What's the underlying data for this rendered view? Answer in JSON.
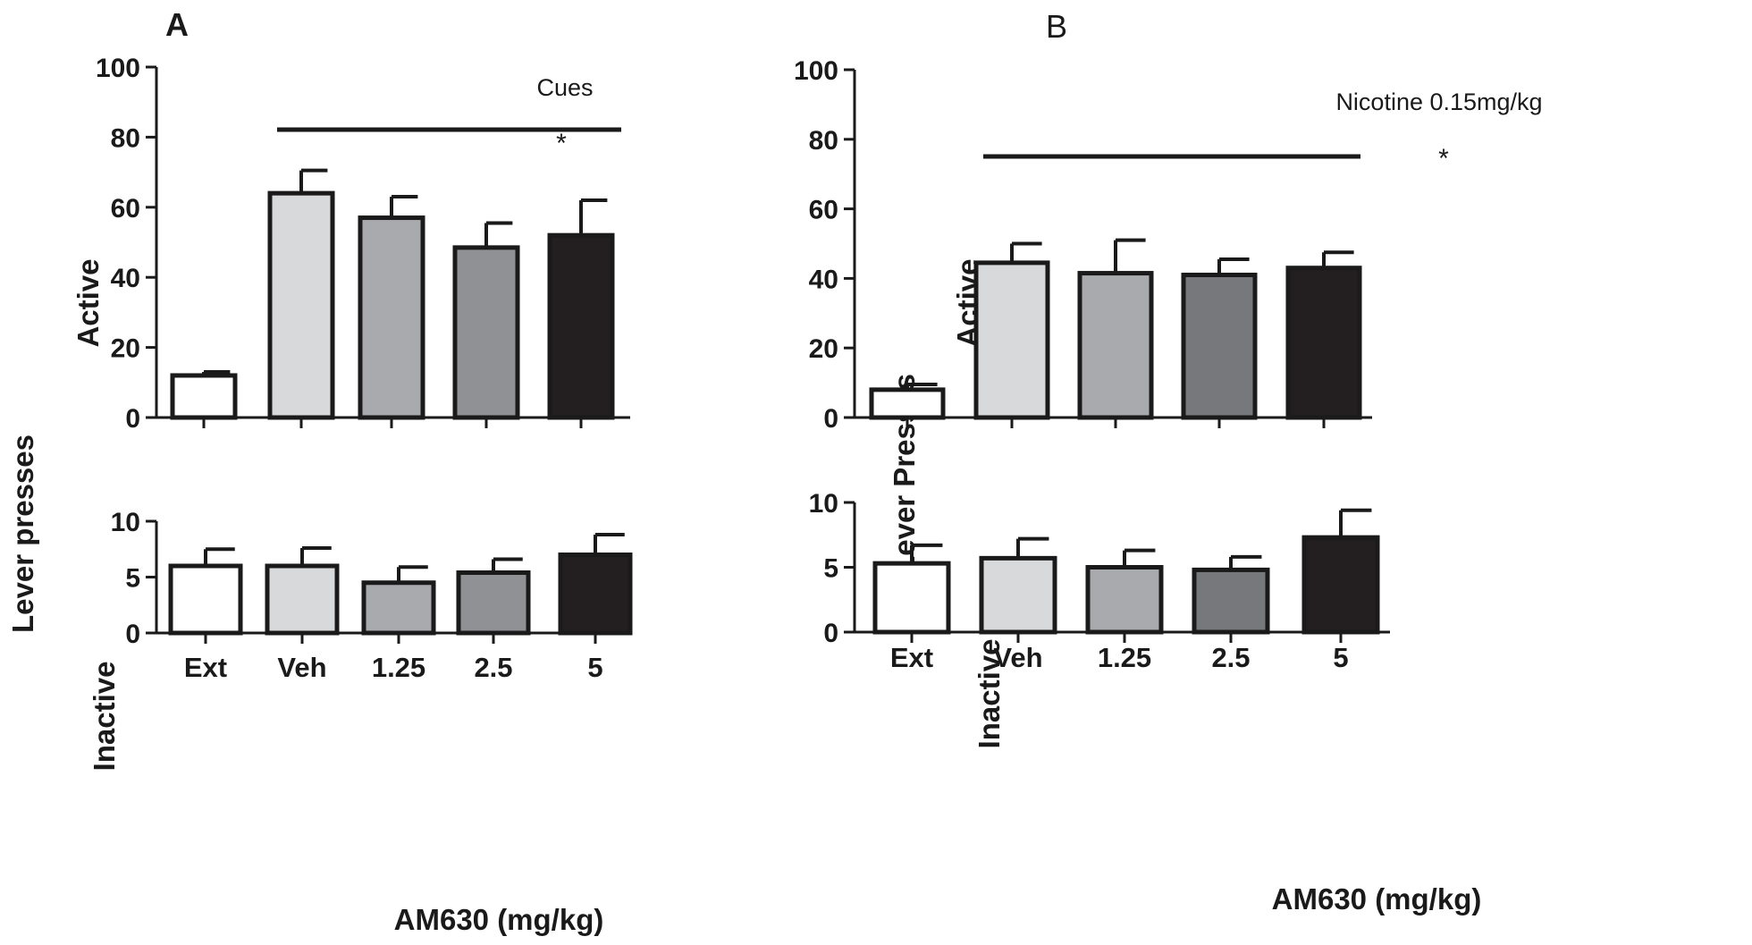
{
  "chart_data": [
    {
      "panel": "A",
      "type": "bar",
      "title": "Cues",
      "ylabel": "Lever presses",
      "xlabel": "AM630 (mg/kg)",
      "categories": [
        "Ext",
        "Veh",
        "1.25",
        "2.5",
        "5"
      ],
      "colors": [
        "#ffffff",
        "#d8d9da",
        "#a9aaae",
        "#909195",
        "#231f20"
      ],
      "significance": {
        "label": "*",
        "from": "Veh",
        "to": "5"
      },
      "subplots": [
        {
          "name": "Active",
          "ylim": [
            0,
            100
          ],
          "ticks": [
            0,
            20,
            40,
            60,
            80,
            100
          ],
          "values": [
            12,
            64,
            57,
            48.5,
            52
          ],
          "errors": [
            1,
            6.5,
            6,
            7,
            10
          ]
        },
        {
          "name": "Inactive",
          "ylim": [
            0,
            10
          ],
          "ticks": [
            0,
            5,
            10
          ],
          "values": [
            6,
            6,
            4.5,
            5.4,
            7
          ],
          "errors": [
            1.5,
            1.6,
            1.4,
            1.2,
            1.8
          ]
        }
      ]
    },
    {
      "panel": "B",
      "type": "bar",
      "title": "Nicotine 0.15mg/kg",
      "ylabel": "Lever Presses",
      "xlabel": "AM630 (mg/kg)",
      "categories": [
        "Ext",
        "Veh",
        "1.25",
        "2.5",
        "5"
      ],
      "colors": [
        "#ffffff",
        "#d8d9da",
        "#a9aaae",
        "#77787b",
        "#231f20"
      ],
      "significance": {
        "label": "*",
        "from": "Veh",
        "to": "5"
      },
      "subplots": [
        {
          "name": "Active",
          "ylim": [
            0,
            100
          ],
          "ticks": [
            0,
            20,
            40,
            60,
            80,
            100
          ],
          "values": [
            8,
            44.5,
            41.5,
            41,
            43
          ],
          "errors": [
            1.5,
            5.5,
            9.5,
            4.5,
            4.5
          ]
        },
        {
          "name": "Inactive",
          "ylim": [
            0,
            10
          ],
          "ticks": [
            0,
            5,
            10
          ],
          "values": [
            5.3,
            5.7,
            5,
            4.8,
            7.3
          ],
          "errors": [
            1.4,
            1.5,
            1.3,
            1,
            2.1
          ]
        }
      ]
    }
  ]
}
